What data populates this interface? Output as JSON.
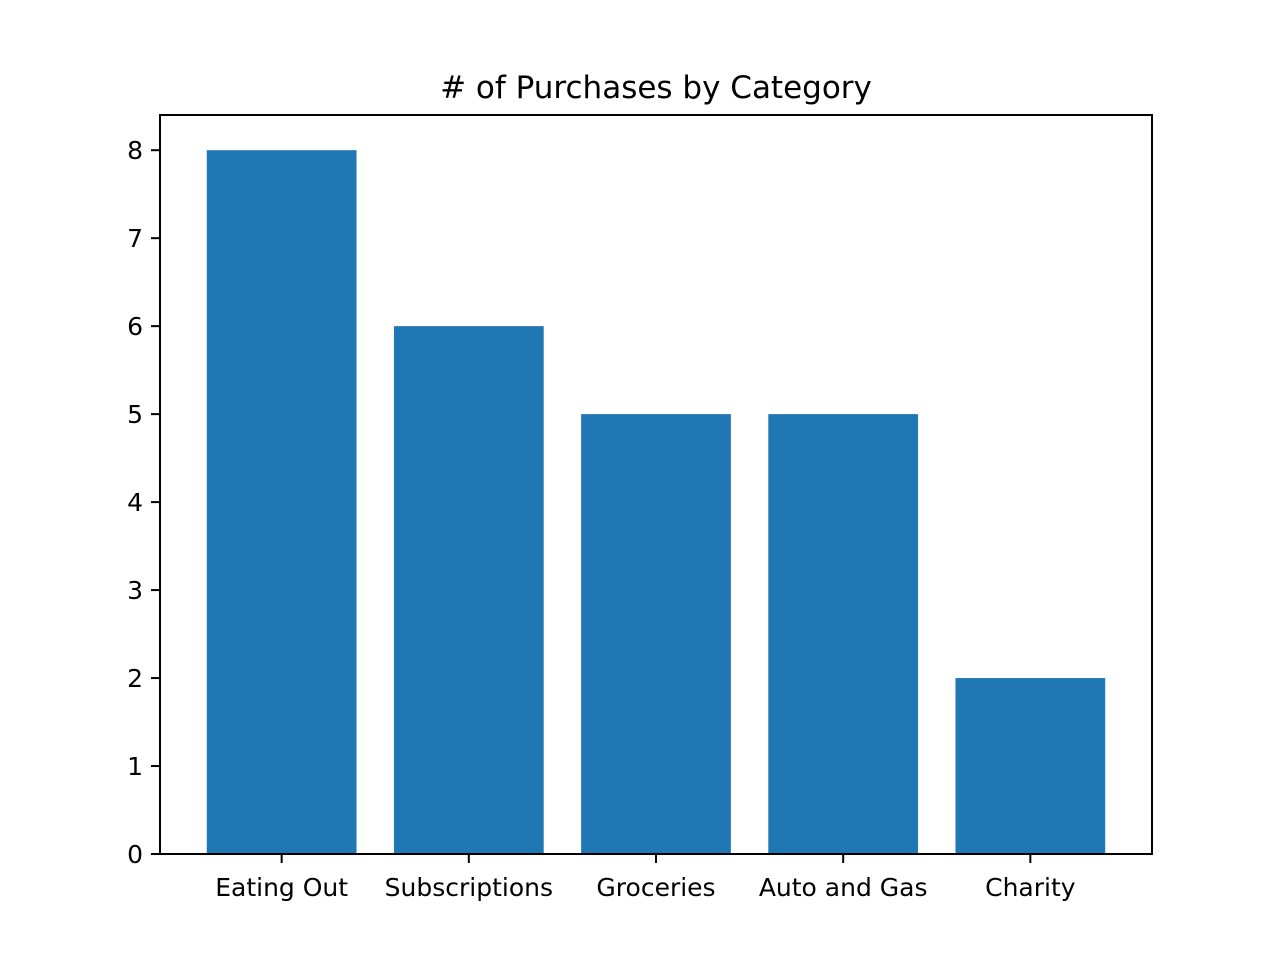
{
  "chart_data": {
    "type": "bar",
    "title": "# of Purchases by Category",
    "xlabel": "",
    "ylabel": "",
    "categories": [
      "Eating Out",
      "Subscriptions",
      "Groceries",
      "Auto and Gas",
      "Charity"
    ],
    "values": [
      8,
      6,
      5,
      5,
      2
    ],
    "ylim": [
      0,
      8.4
    ],
    "yticks": [
      0,
      1,
      2,
      3,
      4,
      5,
      6,
      7,
      8
    ],
    "bar_color": "#1f77b4",
    "grid": false,
    "legend": "none"
  }
}
